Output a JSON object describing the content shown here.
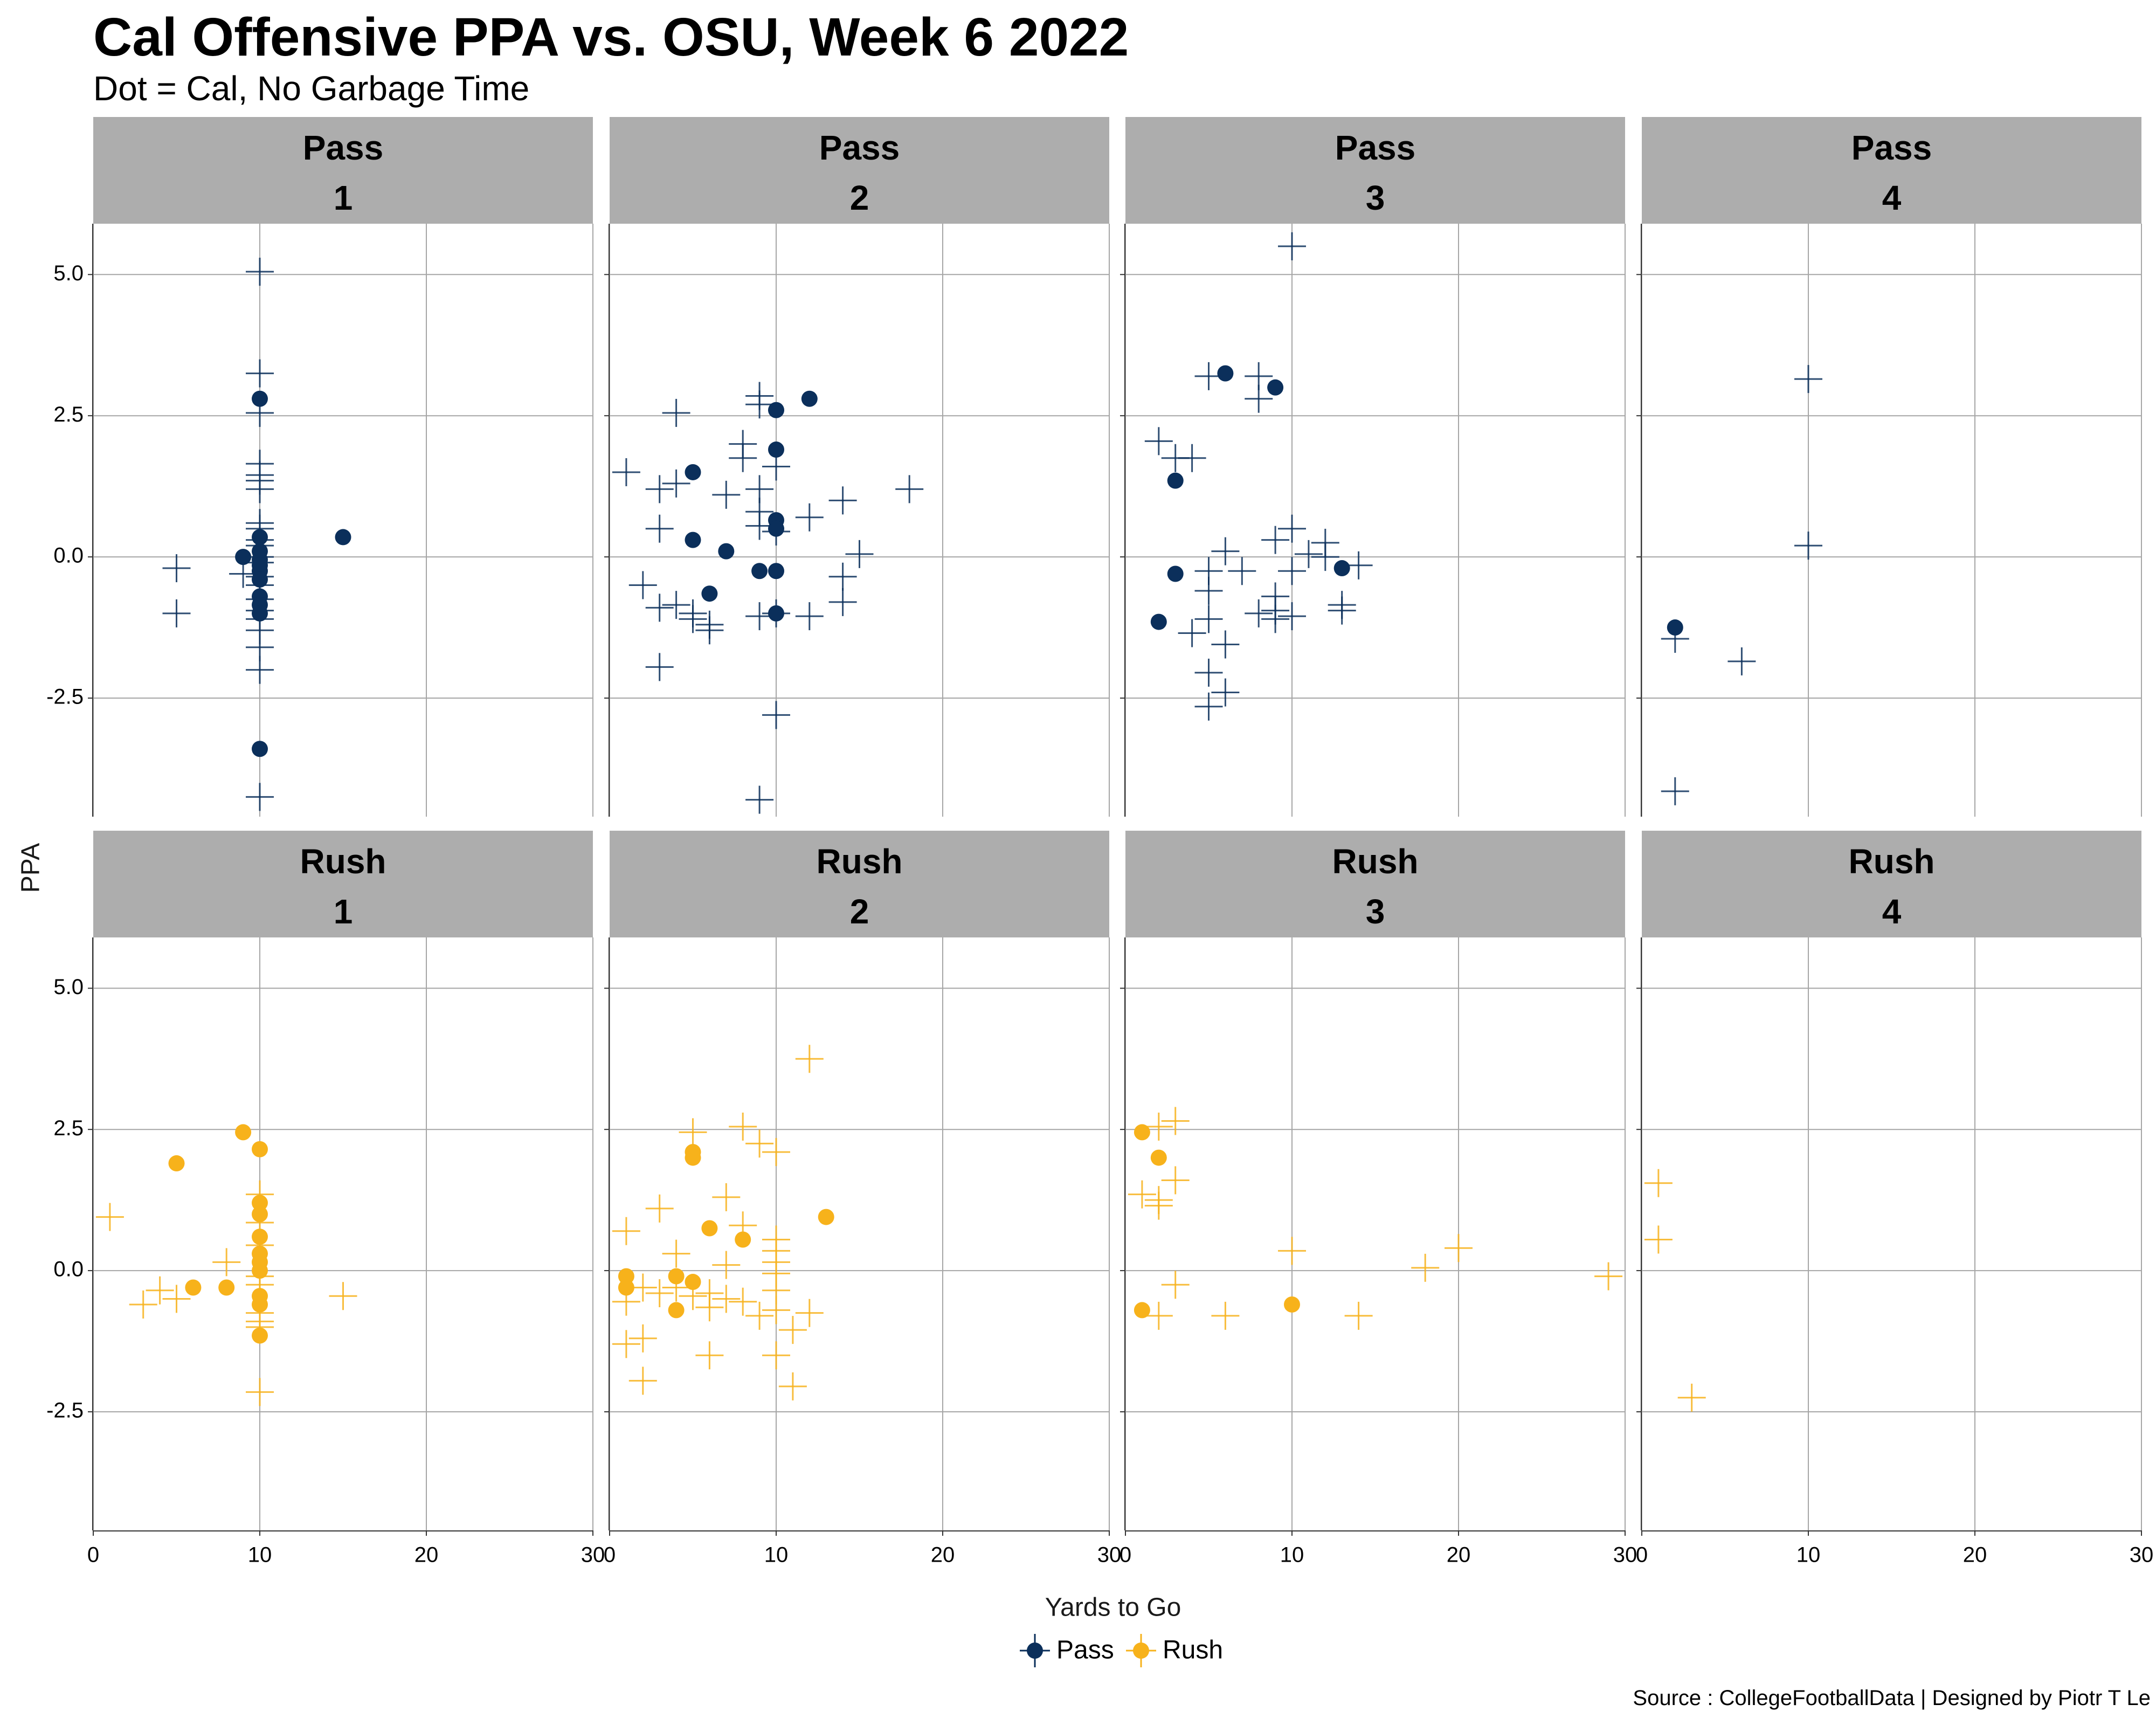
{
  "title": "Cal Offensive PPA vs. OSU, Week 6 2022",
  "subtitle": "Dot = Cal, No Garbage Time",
  "caption": "Source : CollegeFootballData | Designed by Piotr T Le",
  "colors": {
    "Pass": "#0b2f5b",
    "Rush": "#f7b21b",
    "strip": "#adadad",
    "grid": "#a6a6a6"
  },
  "chart_data": {
    "type": "scatter",
    "xlabel": "Yards to Go",
    "ylabel": "PPA",
    "xlim": [
      0,
      30
    ],
    "ylim": [
      -4.6,
      5.9
    ],
    "x_ticks": [
      0,
      10,
      20,
      30
    ],
    "x_tick_labels": [
      "0",
      "10",
      "20",
      "30"
    ],
    "y_ticks": [
      5.0,
      2.5,
      0.0,
      -2.5
    ],
    "y_tick_labels": [
      "5.0",
      "2.5",
      "0.0",
      "-2.5"
    ],
    "grid": true,
    "legend": {
      "position": "bottom",
      "entries": [
        "Pass",
        "Rush"
      ]
    },
    "marker_legend": {
      "dot": "Cal"
    },
    "facets": [
      {
        "type": "Pass",
        "down": "1",
        "dots": [
          [
            9,
            0.0
          ],
          [
            10,
            2.8
          ],
          [
            10,
            0.35
          ],
          [
            10,
            0.1
          ],
          [
            10,
            -0.05
          ],
          [
            10,
            -0.15
          ],
          [
            10,
            -0.25
          ],
          [
            10,
            -0.4
          ],
          [
            10,
            -0.7
          ],
          [
            10,
            -0.85
          ],
          [
            10,
            -1.0
          ],
          [
            10,
            -3.4
          ],
          [
            15,
            0.35
          ]
        ],
        "crosses": [
          [
            5,
            -0.2
          ],
          [
            5,
            -1.0
          ],
          [
            9,
            -0.3
          ],
          [
            10,
            5.05
          ],
          [
            10,
            3.25
          ],
          [
            10,
            2.55
          ],
          [
            10,
            1.65
          ],
          [
            10,
            1.45
          ],
          [
            10,
            1.35
          ],
          [
            10,
            1.2
          ],
          [
            10,
            0.6
          ],
          [
            10,
            0.5
          ],
          [
            10,
            0.3
          ],
          [
            10,
            0.2
          ],
          [
            10,
            0.0
          ],
          [
            10,
            -0.1
          ],
          [
            10,
            -0.35
          ],
          [
            10,
            -0.5
          ],
          [
            10,
            -0.75
          ],
          [
            10,
            -0.95
          ],
          [
            10,
            -1.1
          ],
          [
            10,
            -1.3
          ],
          [
            10,
            -1.6
          ],
          [
            10,
            -2.0
          ],
          [
            10,
            -4.25
          ]
        ]
      },
      {
        "type": "Pass",
        "down": "2",
        "dots": [
          [
            5,
            1.5
          ],
          [
            5,
            0.3
          ],
          [
            6,
            -0.65
          ],
          [
            7,
            0.1
          ],
          [
            9,
            -0.25
          ],
          [
            10,
            2.6
          ],
          [
            10,
            1.9
          ],
          [
            10,
            0.65
          ],
          [
            10,
            0.5
          ],
          [
            10,
            -0.25
          ],
          [
            10,
            -1.0
          ],
          [
            12,
            2.8
          ]
        ],
        "crosses": [
          [
            1,
            1.5
          ],
          [
            2,
            -0.5
          ],
          [
            3,
            1.2
          ],
          [
            3,
            0.5
          ],
          [
            3,
            -0.9
          ],
          [
            3,
            -1.95
          ],
          [
            4,
            2.55
          ],
          [
            4,
            1.3
          ],
          [
            4,
            -0.85
          ],
          [
            5,
            -1.0
          ],
          [
            5,
            -1.1
          ],
          [
            6,
            -1.2
          ],
          [
            6,
            -1.3
          ],
          [
            7,
            1.1
          ],
          [
            8,
            2.0
          ],
          [
            8,
            1.75
          ],
          [
            9,
            2.85
          ],
          [
            9,
            2.7
          ],
          [
            9,
            1.2
          ],
          [
            9,
            0.8
          ],
          [
            9,
            0.55
          ],
          [
            9,
            -1.05
          ],
          [
            9,
            -4.3
          ],
          [
            10,
            1.6
          ],
          [
            10,
            0.45
          ],
          [
            10,
            -1.0
          ],
          [
            10,
            -2.8
          ],
          [
            12,
            0.7
          ],
          [
            12,
            -1.05
          ],
          [
            14,
            1.0
          ],
          [
            14,
            -0.35
          ],
          [
            14,
            -0.8
          ],
          [
            15,
            0.05
          ],
          [
            18,
            1.2
          ]
        ]
      },
      {
        "type": "Pass",
        "down": "3",
        "dots": [
          [
            3,
            1.35
          ],
          [
            3,
            -0.3
          ],
          [
            2,
            -1.15
          ],
          [
            6,
            3.25
          ],
          [
            9,
            3.0
          ],
          [
            13,
            -0.2
          ]
        ],
        "crosses": [
          [
            2,
            2.05
          ],
          [
            3,
            1.75
          ],
          [
            4,
            1.75
          ],
          [
            4,
            -1.35
          ],
          [
            5,
            3.2
          ],
          [
            5,
            -0.25
          ],
          [
            5,
            -0.6
          ],
          [
            5,
            -1.1
          ],
          [
            5,
            -2.05
          ],
          [
            5,
            -2.65
          ],
          [
            6,
            0.1
          ],
          [
            6,
            -1.55
          ],
          [
            6,
            -2.4
          ],
          [
            7,
            -0.25
          ],
          [
            8,
            3.2
          ],
          [
            8,
            2.8
          ],
          [
            8,
            -1.0
          ],
          [
            9,
            0.3
          ],
          [
            9,
            -0.7
          ],
          [
            9,
            -0.95
          ],
          [
            9,
            -1.1
          ],
          [
            10,
            5.5
          ],
          [
            10,
            0.5
          ],
          [
            10,
            -0.25
          ],
          [
            10,
            -1.05
          ],
          [
            11,
            0.05
          ],
          [
            12,
            0.25
          ],
          [
            12,
            0.0
          ],
          [
            13,
            -0.85
          ],
          [
            13,
            -0.95
          ],
          [
            14,
            -0.15
          ]
        ]
      },
      {
        "type": "Pass",
        "down": "4",
        "dots": [
          [
            2,
            -1.25
          ]
        ],
        "crosses": [
          [
            2,
            -1.45
          ],
          [
            2,
            -4.15
          ],
          [
            6,
            -1.85
          ],
          [
            10,
            3.15
          ],
          [
            10,
            0.2
          ]
        ]
      },
      {
        "type": "Rush",
        "down": "1",
        "dots": [
          [
            5,
            1.9
          ],
          [
            6,
            -0.3
          ],
          [
            8,
            -0.3
          ],
          [
            9,
            2.45
          ],
          [
            10,
            2.15
          ],
          [
            10,
            1.2
          ],
          [
            10,
            1.0
          ],
          [
            10,
            0.6
          ],
          [
            10,
            0.3
          ],
          [
            10,
            0.15
          ],
          [
            10,
            0.0
          ],
          [
            10,
            -0.45
          ],
          [
            10,
            -0.6
          ],
          [
            10,
            -1.15
          ]
        ],
        "crosses": [
          [
            1,
            0.95
          ],
          [
            3,
            -0.6
          ],
          [
            4,
            -0.35
          ],
          [
            5,
            -0.5
          ],
          [
            8,
            0.15
          ],
          [
            10,
            1.35
          ],
          [
            10,
            0.85
          ],
          [
            10,
            0.45
          ],
          [
            10,
            -0.1
          ],
          [
            10,
            -0.25
          ],
          [
            10,
            -0.75
          ],
          [
            10,
            -0.9
          ],
          [
            10,
            -1.0
          ],
          [
            10,
            -2.15
          ],
          [
            15,
            -0.45
          ]
        ]
      },
      {
        "type": "Rush",
        "down": "2",
        "dots": [
          [
            1,
            -0.1
          ],
          [
            1,
            -0.3
          ],
          [
            4,
            -0.1
          ],
          [
            4,
            -0.7
          ],
          [
            5,
            2.1
          ],
          [
            5,
            2.0
          ],
          [
            5,
            -0.2
          ],
          [
            6,
            0.75
          ],
          [
            8,
            0.55
          ],
          [
            13,
            0.95
          ]
        ],
        "crosses": [
          [
            1,
            0.7
          ],
          [
            1,
            -0.55
          ],
          [
            1,
            -1.3
          ],
          [
            2,
            -0.3
          ],
          [
            2,
            -1.2
          ],
          [
            2,
            -1.95
          ],
          [
            3,
            1.1
          ],
          [
            3,
            -0.4
          ],
          [
            4,
            0.3
          ],
          [
            4,
            -0.3
          ],
          [
            5,
            2.45
          ],
          [
            5,
            -0.45
          ],
          [
            6,
            -0.4
          ],
          [
            6,
            -0.65
          ],
          [
            6,
            -1.5
          ],
          [
            7,
            1.3
          ],
          [
            7,
            0.1
          ],
          [
            7,
            -0.5
          ],
          [
            8,
            2.55
          ],
          [
            8,
            0.8
          ],
          [
            8,
            -0.55
          ],
          [
            9,
            2.25
          ],
          [
            9,
            -0.8
          ],
          [
            10,
            2.1
          ],
          [
            10,
            0.55
          ],
          [
            10,
            0.35
          ],
          [
            10,
            0.15
          ],
          [
            10,
            -0.05
          ],
          [
            10,
            -0.35
          ],
          [
            10,
            -0.7
          ],
          [
            10,
            -1.5
          ],
          [
            11,
            -1.05
          ],
          [
            11,
            -2.05
          ],
          [
            12,
            3.75
          ],
          [
            12,
            -0.75
          ]
        ]
      },
      {
        "type": "Rush",
        "down": "3",
        "dots": [
          [
            1,
            2.45
          ],
          [
            1,
            -0.7
          ],
          [
            2,
            2.0
          ],
          [
            10,
            -0.6
          ]
        ],
        "crosses": [
          [
            1,
            1.35
          ],
          [
            2,
            2.55
          ],
          [
            2,
            1.25
          ],
          [
            2,
            1.15
          ],
          [
            2,
            -0.8
          ],
          [
            3,
            2.65
          ],
          [
            3,
            1.6
          ],
          [
            3,
            -0.25
          ],
          [
            6,
            -0.8
          ],
          [
            10,
            0.35
          ],
          [
            14,
            -0.8
          ],
          [
            18,
            0.05
          ],
          [
            20,
            0.4
          ],
          [
            29,
            -0.1
          ]
        ]
      },
      {
        "type": "Rush",
        "down": "4",
        "dots": [],
        "crosses": [
          [
            1,
            1.55
          ],
          [
            1,
            0.55
          ],
          [
            3,
            -2.25
          ]
        ]
      }
    ]
  }
}
